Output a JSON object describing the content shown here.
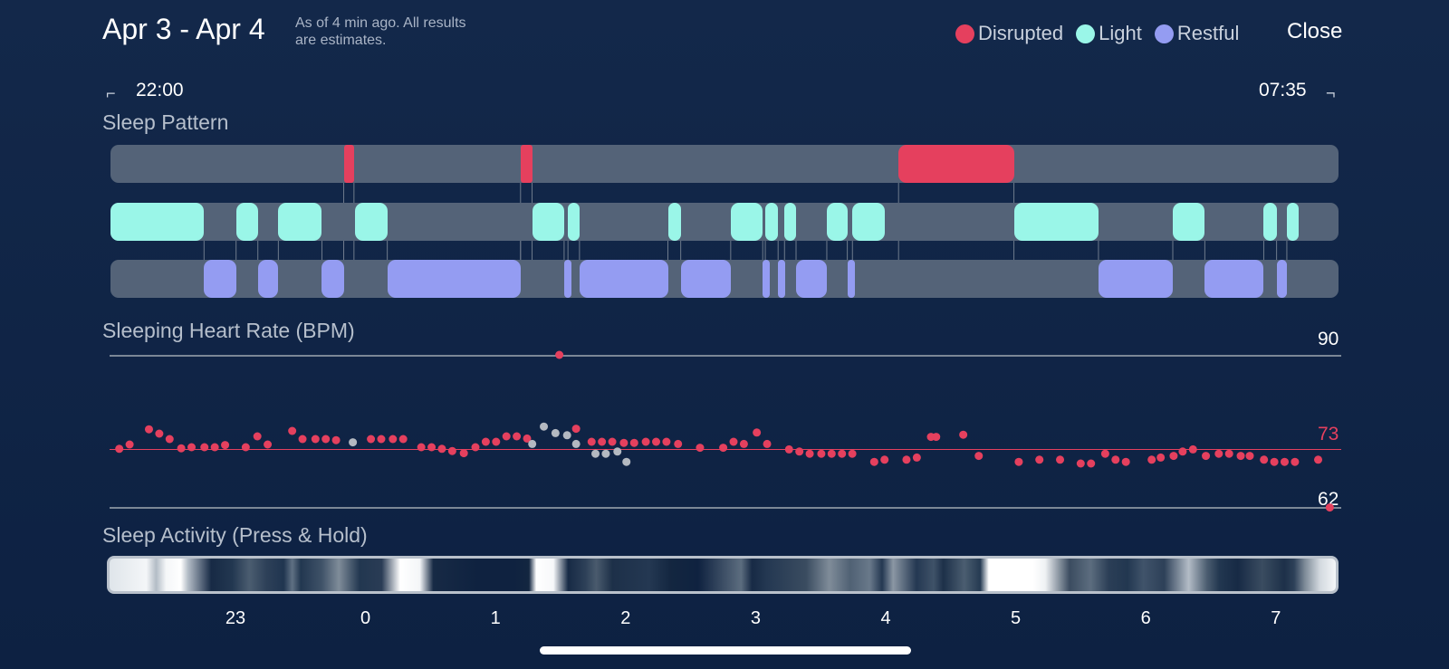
{
  "header": {
    "title": "Apr 3 - Apr 4",
    "subtitle_line1": "As of 4 min ago. All results",
    "subtitle_line2": "are estimates.",
    "close_label": "Close"
  },
  "legend": {
    "items": [
      {
        "label": "Disrupted",
        "color": "#e5405e"
      },
      {
        "label": "Light",
        "color": "#9af6e8"
      },
      {
        "label": "Restful",
        "color": "#949cf2"
      }
    ]
  },
  "time_range": {
    "start": "22:00",
    "end": "07:35"
  },
  "sleep_pattern": {
    "label": "Sleep Pattern",
    "disrupted": [
      [
        1.82,
        1.9
      ],
      [
        3.2,
        3.29
      ],
      [
        6.15,
        7.05
      ]
    ],
    "light": [
      [
        0,
        0.73
      ],
      [
        0.98,
        1.15
      ],
      [
        1.31,
        1.65
      ],
      [
        1.91,
        2.16
      ],
      [
        3.29,
        3.54
      ],
      [
        3.57,
        3.66
      ],
      [
        4.35,
        4.45
      ],
      [
        4.84,
        5.09
      ],
      [
        5.11,
        5.21
      ],
      [
        5.26,
        5.35
      ],
      [
        5.59,
        5.75
      ],
      [
        5.79,
        6.04
      ],
      [
        7.05,
        7.71
      ],
      [
        8.29,
        8.54
      ],
      [
        9.0,
        9.1
      ],
      [
        9.18,
        9.27
      ]
    ],
    "restful": [
      [
        0.73,
        0.98
      ],
      [
        1.15,
        1.31
      ],
      [
        1.65,
        1.82
      ],
      [
        2.16,
        3.2
      ],
      [
        3.54,
        3.57
      ],
      [
        3.66,
        4.35
      ],
      [
        4.45,
        4.84
      ],
      [
        5.09,
        5.11
      ],
      [
        5.21,
        5.26
      ],
      [
        5.35,
        5.59
      ],
      [
        5.75,
        5.79
      ],
      [
        7.71,
        8.29
      ],
      [
        8.54,
        9.0
      ],
      [
        9.1,
        9.18
      ]
    ]
  },
  "heart_rate": {
    "label": "Sleeping Heart Rate (BPM)",
    "max_label": "90",
    "avg_label": "73",
    "min_label": "62",
    "max": 90,
    "avg": 73,
    "min": 62,
    "points": [
      [
        22.04,
        72.7
      ],
      [
        22.12,
        73.5
      ],
      [
        22.27,
        76.3
      ],
      [
        22.35,
        75.5
      ],
      [
        22.43,
        74.5
      ],
      [
        22.52,
        72.8
      ],
      [
        22.6,
        73.0
      ],
      [
        22.7,
        73.0
      ],
      [
        22.78,
        73.0
      ],
      [
        22.86,
        73.4
      ],
      [
        23.02,
        73.0
      ],
      [
        23.11,
        75.0
      ],
      [
        23.19,
        73.5
      ],
      [
        23.38,
        76.0
      ],
      [
        23.46,
        74.5
      ],
      [
        23.56,
        74.5
      ],
      [
        23.64,
        74.5
      ],
      [
        23.72,
        74.3
      ],
      [
        23.99,
        74.5
      ],
      [
        24.07,
        74.5
      ],
      [
        24.16,
        74.5
      ],
      [
        24.24,
        74.5
      ],
      [
        24.38,
        73.0
      ],
      [
        24.46,
        73.0
      ],
      [
        24.54,
        72.7
      ],
      [
        24.62,
        72.3
      ],
      [
        24.71,
        71.9
      ],
      [
        24.8,
        73.0
      ],
      [
        24.88,
        74.0
      ],
      [
        24.96,
        74.0
      ],
      [
        25.04,
        75.0
      ],
      [
        25.12,
        75.0
      ],
      [
        25.2,
        74.6
      ],
      [
        25.45,
        90.0
      ],
      [
        25.58,
        76.4
      ],
      [
        25.7,
        74.0
      ],
      [
        25.78,
        74.0
      ],
      [
        25.86,
        74.0
      ],
      [
        25.95,
        73.8
      ],
      [
        26.03,
        73.8
      ],
      [
        26.12,
        74.0
      ],
      [
        26.2,
        74.0
      ],
      [
        26.28,
        74.0
      ],
      [
        26.37,
        73.6
      ],
      [
        26.54,
        72.9
      ],
      [
        26.72,
        72.9
      ],
      [
        26.8,
        74.0
      ],
      [
        26.88,
        73.6
      ],
      [
        26.98,
        75.7
      ],
      [
        27.06,
        73.6
      ],
      [
        27.23,
        72.6
      ],
      [
        27.31,
        72.2
      ],
      [
        27.39,
        71.8
      ],
      [
        27.48,
        71.8
      ],
      [
        27.56,
        71.8
      ],
      [
        27.64,
        71.8
      ],
      [
        27.72,
        71.8
      ],
      [
        27.89,
        70.3
      ],
      [
        27.97,
        70.7
      ],
      [
        28.14,
        70.7
      ],
      [
        28.22,
        71.1
      ],
      [
        28.33,
        74.9
      ],
      [
        28.37,
        74.9
      ],
      [
        28.58,
        75.3
      ],
      [
        28.7,
        71.4
      ],
      [
        29.01,
        70.3
      ],
      [
        29.17,
        70.7
      ],
      [
        29.33,
        70.7
      ],
      [
        29.49,
        70.0
      ],
      [
        29.57,
        70.0
      ],
      [
        29.68,
        71.8
      ],
      [
        29.76,
        70.7
      ],
      [
        29.84,
        70.3
      ],
      [
        30.04,
        70.7
      ],
      [
        30.11,
        71.1
      ],
      [
        30.21,
        71.4
      ],
      [
        30.28,
        72.2
      ],
      [
        30.36,
        72.6
      ],
      [
        30.46,
        71.4
      ],
      [
        30.56,
        71.8
      ],
      [
        30.64,
        71.8
      ],
      [
        30.73,
        71.4
      ],
      [
        30.8,
        71.4
      ],
      [
        30.91,
        70.7
      ],
      [
        30.99,
        70.3
      ],
      [
        31.07,
        70.3
      ],
      [
        31.15,
        70.3
      ],
      [
        31.33,
        70.7
      ],
      [
        31.42,
        61.9
      ]
    ],
    "gray_points": [
      [
        23.85,
        73.9
      ],
      [
        25.24,
        73.6
      ],
      [
        25.33,
        76.8
      ],
      [
        25.42,
        75.6
      ],
      [
        25.51,
        75.2
      ],
      [
        25.58,
        73.6
      ],
      [
        25.73,
        71.8
      ],
      [
        25.81,
        71.8
      ],
      [
        25.9,
        72.2
      ],
      [
        25.97,
        70.3
      ]
    ]
  },
  "sleep_activity": {
    "label": "Sleep Activity (Press & Hold)",
    "hours": [
      "23",
      "0",
      "1",
      "2",
      "3",
      "4",
      "5",
      "6",
      "7"
    ]
  }
}
